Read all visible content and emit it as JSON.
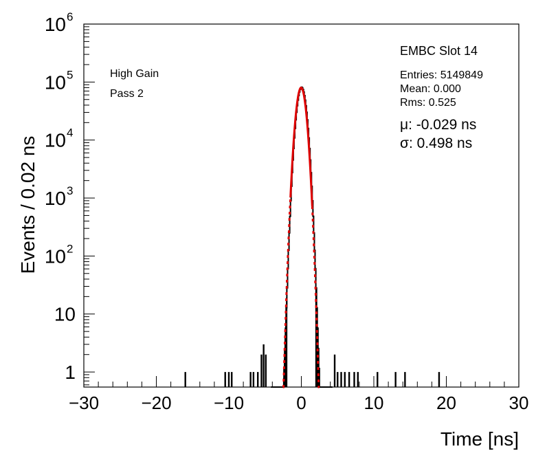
{
  "chart_data": {
    "type": "histogram",
    "xlabel": "Time [ns]",
    "ylabel": "Events / 0.02 ns",
    "xlim": [
      -30,
      30
    ],
    "ylim": [
      0.55,
      1000000
    ],
    "log_y": true,
    "grid": false,
    "x_ticks": [
      -30,
      -20,
      -10,
      0,
      10,
      20,
      30
    ],
    "x_tick_labels": [
      "−30",
      "−20",
      "−10",
      "0",
      "10",
      "20",
      "30"
    ],
    "y_ticks": [
      {
        "value": 1,
        "base": "1",
        "exp": ""
      },
      {
        "value": 10,
        "base": "10",
        "exp": ""
      },
      {
        "value": 100,
        "base": "10",
        "exp": "2"
      },
      {
        "value": 1000,
        "base": "10",
        "exp": "3"
      },
      {
        "value": 10000,
        "base": "10",
        "exp": "4"
      },
      {
        "value": 100000,
        "base": "10",
        "exp": "5"
      },
      {
        "value": 1000000,
        "base": "10",
        "exp": "6"
      }
    ],
    "annotations": {
      "left_line1": "High Gain",
      "left_line2": "Pass 2",
      "title": "EMBC Slot 14",
      "entries": "Entries: 5149849",
      "mean": "Mean: 0.000",
      "rms": "Rms: 0.525",
      "mu": "μ: -0.029 ns",
      "sigma": "σ: 0.498 ns"
    },
    "histogram": {
      "color": "#000000",
      "peak": 80000,
      "core_mu": 0.0,
      "core_sigma": 0.5,
      "tail_slope_per_ns": 2.0,
      "core_range": [
        -4.2,
        4.2
      ],
      "isolated_bins": [
        {
          "x": -16,
          "y": 1
        },
        {
          "x": -10.5,
          "y": 1
        },
        {
          "x": -10.0,
          "y": 1
        },
        {
          "x": -9.6,
          "y": 1
        },
        {
          "x": -7.0,
          "y": 1
        },
        {
          "x": -6.6,
          "y": 1
        },
        {
          "x": -6.0,
          "y": 1
        },
        {
          "x": -5.5,
          "y": 2
        },
        {
          "x": -5.2,
          "y": 3
        },
        {
          "x": -4.9,
          "y": 2
        },
        {
          "x": 4.6,
          "y": 2
        },
        {
          "x": 5.0,
          "y": 1
        },
        {
          "x": 5.5,
          "y": 1
        },
        {
          "x": 6.0,
          "y": 1
        },
        {
          "x": 6.6,
          "y": 1
        },
        {
          "x": 7.3,
          "y": 1
        },
        {
          "x": 7.8,
          "y": 1
        },
        {
          "x": 10.5,
          "y": 1
        },
        {
          "x": 13.0,
          "y": 1
        },
        {
          "x": 14.3,
          "y": 1
        },
        {
          "x": 19.0,
          "y": 1
        }
      ]
    },
    "fit": {
      "type": "gaussian",
      "mu": -0.029,
      "sigma": 0.498,
      "amplitude": 80000,
      "color": "#e00000",
      "solid_range": [
        -1.5,
        1.5
      ],
      "dashed_range": [
        -2.55,
        2.5
      ]
    }
  }
}
